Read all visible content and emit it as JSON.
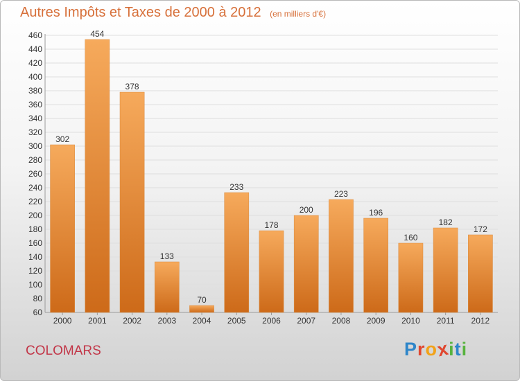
{
  "title": "Autres Impôts et Taxes de 2000 à 2012",
  "unit": "(en milliers d'€)",
  "commune": "COLOMARS",
  "brand": {
    "letters": [
      "P",
      "r",
      "o",
      "x",
      "i",
      "t",
      "i"
    ],
    "colors": [
      "#2e86c9",
      "#e0462f",
      "#f2a218",
      "#e0462f",
      "#57b33e",
      "#2e86c9",
      "#57b33e"
    ]
  },
  "colors": {
    "bar_light": "#f6aa5c",
    "bar_dark": "#cd6a19",
    "title": "#d7703a",
    "commune": "#c23648",
    "grid": "#dedede"
  },
  "chart_data": {
    "type": "bar",
    "title": "Autres Impôts et Taxes de 2000 à 2012",
    "subtitle": "(en milliers d'€)",
    "categories": [
      "2000",
      "2001",
      "2002",
      "2003",
      "2004",
      "2005",
      "2006",
      "2007",
      "2008",
      "2009",
      "2010",
      "2011",
      "2012"
    ],
    "values": [
      302,
      454,
      378,
      133,
      70,
      233,
      178,
      200,
      223,
      196,
      160,
      182,
      172
    ],
    "ylim": [
      60,
      460
    ],
    "yticks": [
      60,
      80,
      100,
      120,
      140,
      160,
      180,
      200,
      220,
      240,
      260,
      280,
      300,
      320,
      340,
      360,
      380,
      400,
      420,
      440,
      460
    ],
    "grid": true,
    "legend": "none"
  }
}
